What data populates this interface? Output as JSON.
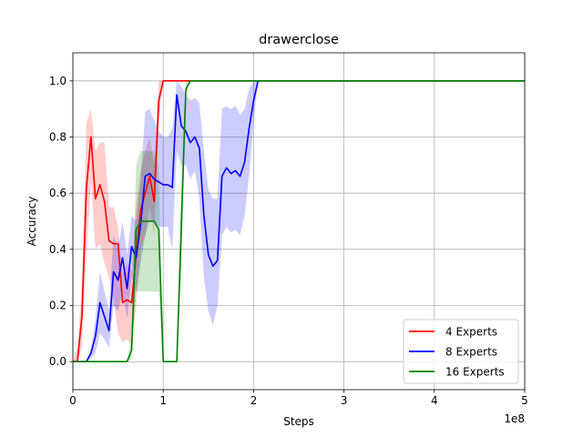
{
  "chart_data": {
    "type": "line",
    "title": "drawerclose",
    "xlabel": "Steps",
    "ylabel": "Accuracy",
    "x_offset_label": "1e8",
    "xlim": [
      0,
      5
    ],
    "ylim": [
      -0.1,
      1.1
    ],
    "x_ticks": [
      0,
      1,
      2,
      3,
      4,
      5
    ],
    "x_tick_labels": [
      "0",
      "1",
      "2",
      "3",
      "4",
      "5"
    ],
    "y_ticks": [
      0.0,
      0.2,
      0.4,
      0.6,
      0.8,
      1.0
    ],
    "y_tick_labels": [
      "0.0",
      "0.2",
      "0.4",
      "0.6",
      "0.8",
      "1.0"
    ],
    "grid": true,
    "legend_position": "lower-right",
    "series": [
      {
        "name": "4 Experts",
        "color": "#ff0000",
        "band_color": "#ff0000",
        "x": [
          0.0,
          0.05,
          0.1,
          0.15,
          0.2,
          0.25,
          0.3,
          0.35,
          0.4,
          0.45,
          0.5,
          0.55,
          0.6,
          0.65,
          0.7,
          0.75,
          0.8,
          0.85,
          0.9,
          0.95,
          1.0,
          1.1,
          5.0
        ],
        "y": [
          0.0,
          0.0,
          0.16,
          0.62,
          0.8,
          0.58,
          0.63,
          0.57,
          0.43,
          0.42,
          0.42,
          0.21,
          0.22,
          0.21,
          0.38,
          0.54,
          0.6,
          0.66,
          0.57,
          0.93,
          1.0,
          1.0,
          1.0
        ],
        "lower": [
          0.0,
          0.0,
          0.05,
          0.38,
          0.65,
          0.4,
          0.42,
          0.35,
          0.3,
          0.22,
          0.1,
          0.07,
          0.08,
          0.06,
          0.2,
          0.4,
          0.45,
          0.55,
          0.45,
          0.85,
          1.0,
          1.0,
          1.0
        ],
        "upper": [
          0.0,
          0.05,
          0.27,
          0.85,
          0.9,
          0.75,
          0.78,
          0.78,
          0.55,
          0.55,
          0.48,
          0.32,
          0.35,
          0.32,
          0.55,
          0.68,
          0.75,
          0.8,
          0.7,
          1.0,
          1.0,
          1.0,
          1.0
        ]
      },
      {
        "name": "8 Experts",
        "color": "#0000ff",
        "band_color": "#0000ff",
        "x": [
          0.0,
          0.1,
          0.15,
          0.2,
          0.25,
          0.3,
          0.35,
          0.4,
          0.45,
          0.5,
          0.55,
          0.6,
          0.65,
          0.7,
          0.75,
          0.8,
          0.85,
          0.9,
          0.95,
          1.0,
          1.05,
          1.1,
          1.15,
          1.2,
          1.25,
          1.3,
          1.35,
          1.4,
          1.45,
          1.5,
          1.55,
          1.6,
          1.65,
          1.7,
          1.75,
          1.8,
          1.85,
          1.9,
          1.95,
          2.0,
          2.05,
          5.0
        ],
        "y": [
          0.0,
          0.0,
          0.0,
          0.03,
          0.09,
          0.21,
          0.16,
          0.11,
          0.32,
          0.29,
          0.37,
          0.26,
          0.41,
          0.37,
          0.49,
          0.66,
          0.67,
          0.65,
          0.64,
          0.63,
          0.63,
          0.62,
          0.95,
          0.84,
          0.82,
          0.78,
          0.8,
          0.76,
          0.52,
          0.38,
          0.34,
          0.36,
          0.66,
          0.69,
          0.67,
          0.68,
          0.66,
          0.71,
          0.83,
          0.93,
          1.0,
          1.0
        ],
        "lower": [
          0.0,
          0.0,
          0.0,
          0.01,
          0.03,
          0.1,
          0.08,
          0.05,
          0.2,
          0.18,
          0.25,
          0.15,
          0.3,
          0.25,
          0.35,
          0.45,
          0.5,
          0.5,
          0.48,
          0.48,
          0.48,
          0.4,
          0.75,
          0.7,
          0.7,
          0.65,
          0.68,
          0.58,
          0.3,
          0.18,
          0.13,
          0.2,
          0.45,
          0.48,
          0.46,
          0.47,
          0.45,
          0.52,
          0.66,
          0.85,
          1.0,
          1.0
        ],
        "upper": [
          0.0,
          0.0,
          0.0,
          0.05,
          0.15,
          0.32,
          0.25,
          0.18,
          0.45,
          0.4,
          0.5,
          0.38,
          0.52,
          0.5,
          0.65,
          0.89,
          0.9,
          0.86,
          0.82,
          0.8,
          0.8,
          0.83,
          1.0,
          0.98,
          0.95,
          0.93,
          0.94,
          0.92,
          0.75,
          0.61,
          0.58,
          0.58,
          0.9,
          0.91,
          0.9,
          0.91,
          0.88,
          0.9,
          0.97,
          1.0,
          1.0,
          1.0
        ]
      },
      {
        "name": "16 Experts",
        "color": "#008000",
        "band_color": "#008000",
        "x": [
          0.0,
          0.55,
          0.6,
          0.65,
          0.7,
          0.75,
          0.8,
          0.85,
          0.9,
          0.95,
          1.0,
          1.05,
          1.1,
          1.15,
          1.2,
          1.25,
          1.3,
          1.35,
          5.0
        ],
        "y": [
          0.0,
          0.0,
          0.0,
          0.04,
          0.47,
          0.5,
          0.5,
          0.5,
          0.5,
          0.47,
          0.0,
          0.0,
          0.0,
          0.0,
          0.48,
          0.97,
          1.0,
          1.0,
          1.0
        ],
        "lower": [
          0.0,
          0.0,
          0.0,
          0.01,
          0.25,
          0.25,
          0.25,
          0.25,
          0.25,
          0.25,
          0.0,
          0.0,
          0.0,
          0.0,
          0.3,
          0.95,
          1.0,
          1.0,
          1.0
        ],
        "upper": [
          0.0,
          0.0,
          0.0,
          0.1,
          0.7,
          0.75,
          0.75,
          0.75,
          0.75,
          0.7,
          0.0,
          0.0,
          0.0,
          0.0,
          0.65,
          1.0,
          1.0,
          1.0,
          1.0
        ]
      }
    ]
  }
}
